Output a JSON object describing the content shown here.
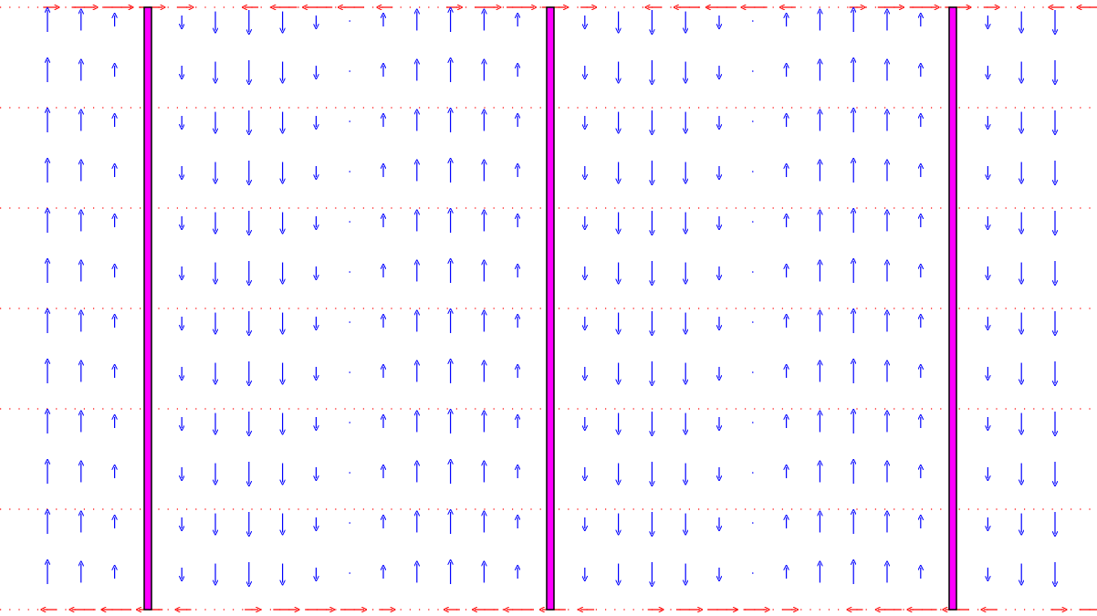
{
  "colors": {
    "background": "#ffffff",
    "vertical_field": "#0000ff",
    "horizontal_field": "#ff0000",
    "plate_fill": "#ff00ff",
    "plate_stroke": "#000000"
  },
  "diagram": {
    "type": "vector-field",
    "plates": [
      {
        "name": "plate-left"
      },
      {
        "name": "plate-middle"
      },
      {
        "name": "plate-right"
      }
    ],
    "vertical_field_pattern": {
      "period_columns": 12,
      "amplitudes": [
        1.0,
        0.87,
        0.5,
        0.0,
        -0.5,
        -0.87,
        -1.0,
        -0.87,
        -0.5,
        0.0,
        0.5,
        0.87
      ],
      "row_count": 12
    },
    "horizontal_field_lines": {
      "line_count": 7,
      "pattern": "dotted-with-arrows-near-edges"
    }
  }
}
